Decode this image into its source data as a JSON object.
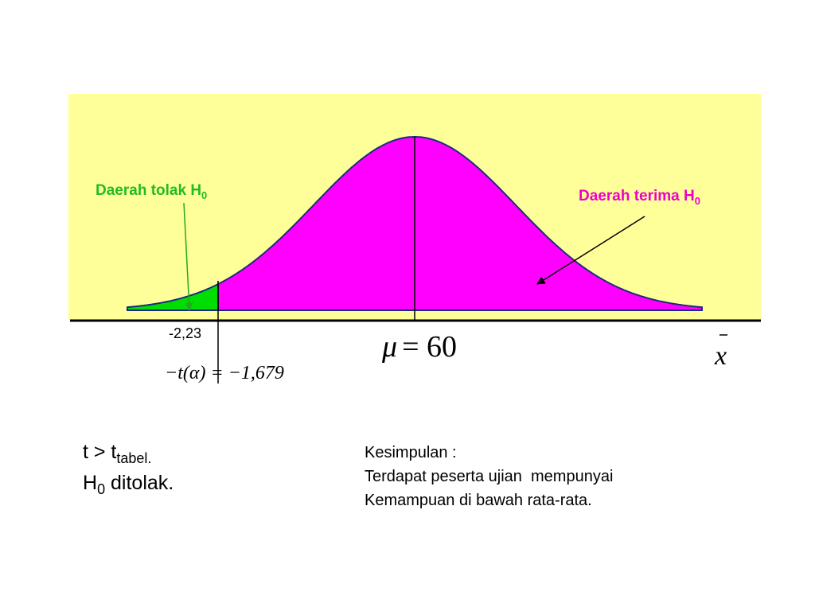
{
  "diagram": {
    "reject_label": {
      "text": "Daerah tolak H",
      "sub": "0"
    },
    "accept_label": {
      "text": "Daerah terima H",
      "sub": "0"
    },
    "critical_value": "-2,23",
    "mean_label": {
      "symbol": "μ",
      "text": "= 60"
    },
    "t_alpha": "−t(α) = −1,679",
    "axis_label": "x"
  },
  "notes": {
    "test": {
      "text": "t > t",
      "sub": "tabel."
    },
    "decision": {
      "text": "H",
      "sub": "0",
      "rest": " ditolak."
    }
  },
  "conclusion": [
    "Kesimpulan :",
    "Terdapat peserta ujian  mempunyai",
    "Kemampuan di bawah rata-rata."
  ]
}
